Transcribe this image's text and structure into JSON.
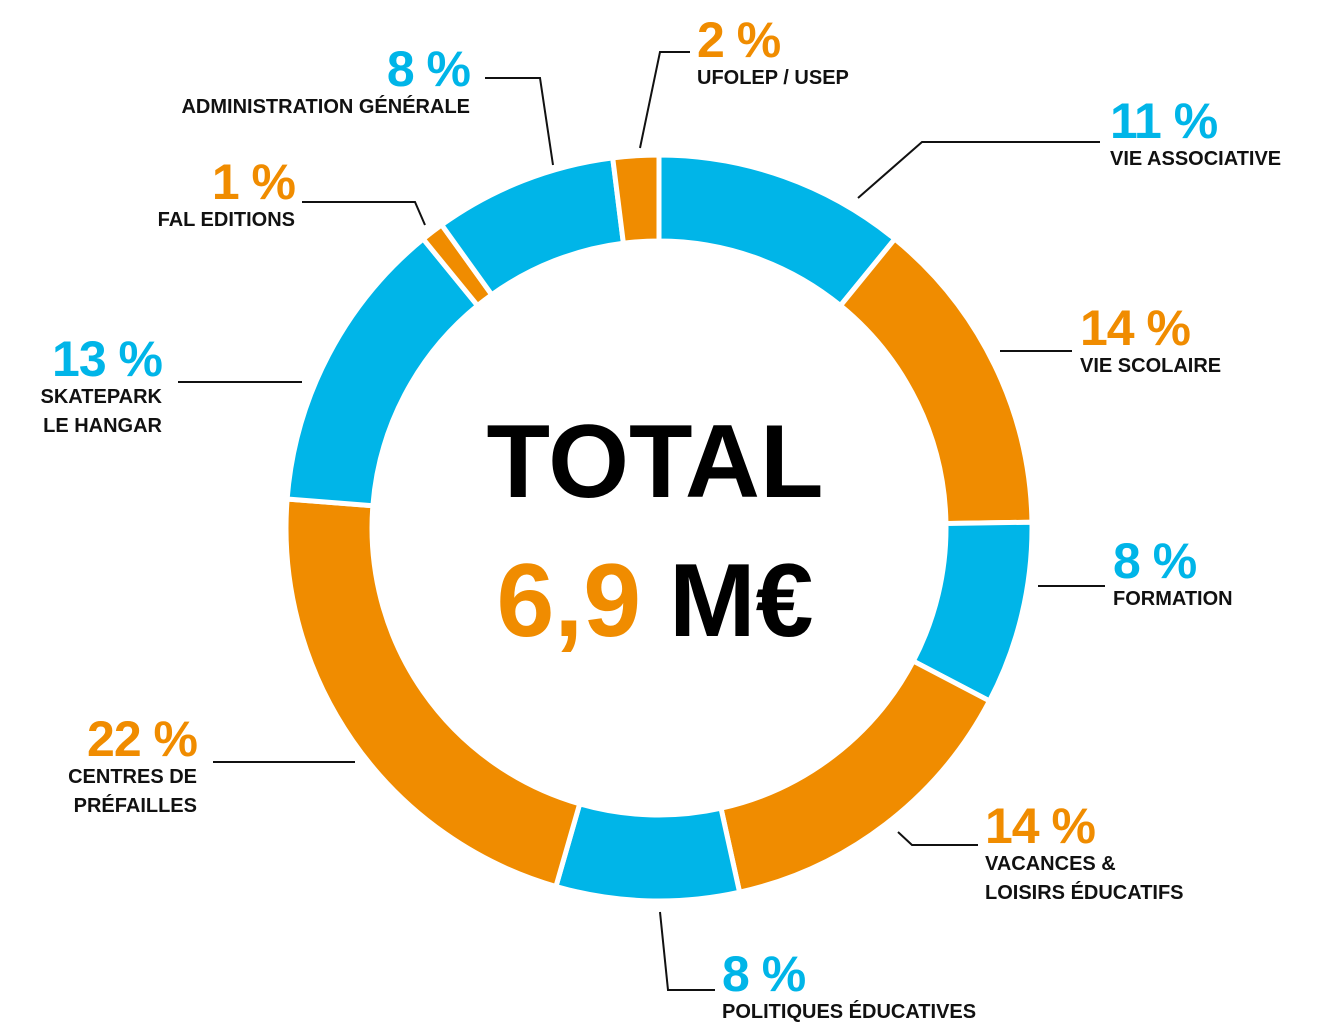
{
  "chart_data": {
    "type": "donut",
    "categories": [
      "VIE ASSOCIATIVE",
      "VIE SCOLAIRE",
      "FORMATION",
      "VACANCES &\nLOISIRS ÉDUCATIFS",
      "POLITIQUES ÉDUCATIVES",
      "CENTRES DE\nPRÉFAILLES",
      "SKATEPARK\nLE HANGAR",
      "FAL EDITIONS",
      "ADMINISTRATION GÉNÉRALE",
      "UFOLEP / USEP"
    ],
    "values": [
      11,
      14,
      8,
      14,
      8,
      22,
      13,
      1,
      8,
      2
    ],
    "value_labels": [
      "11 %",
      "14 %",
      "8 %",
      "14 %",
      "8 %",
      "22 %",
      "13 %",
      "1 %",
      "8 %",
      "2 %"
    ],
    "colors": [
      "#00b5e8",
      "#f08c00",
      "#00b5e8",
      "#f08c00",
      "#00b5e8",
      "#f08c00",
      "#00b5e8",
      "#f08c00",
      "#00b5e8",
      "#f08c00"
    ],
    "center_title": "TOTAL",
    "center_value": "6,9",
    "center_unit": "M€",
    "center_value_color": "#f08c00"
  }
}
